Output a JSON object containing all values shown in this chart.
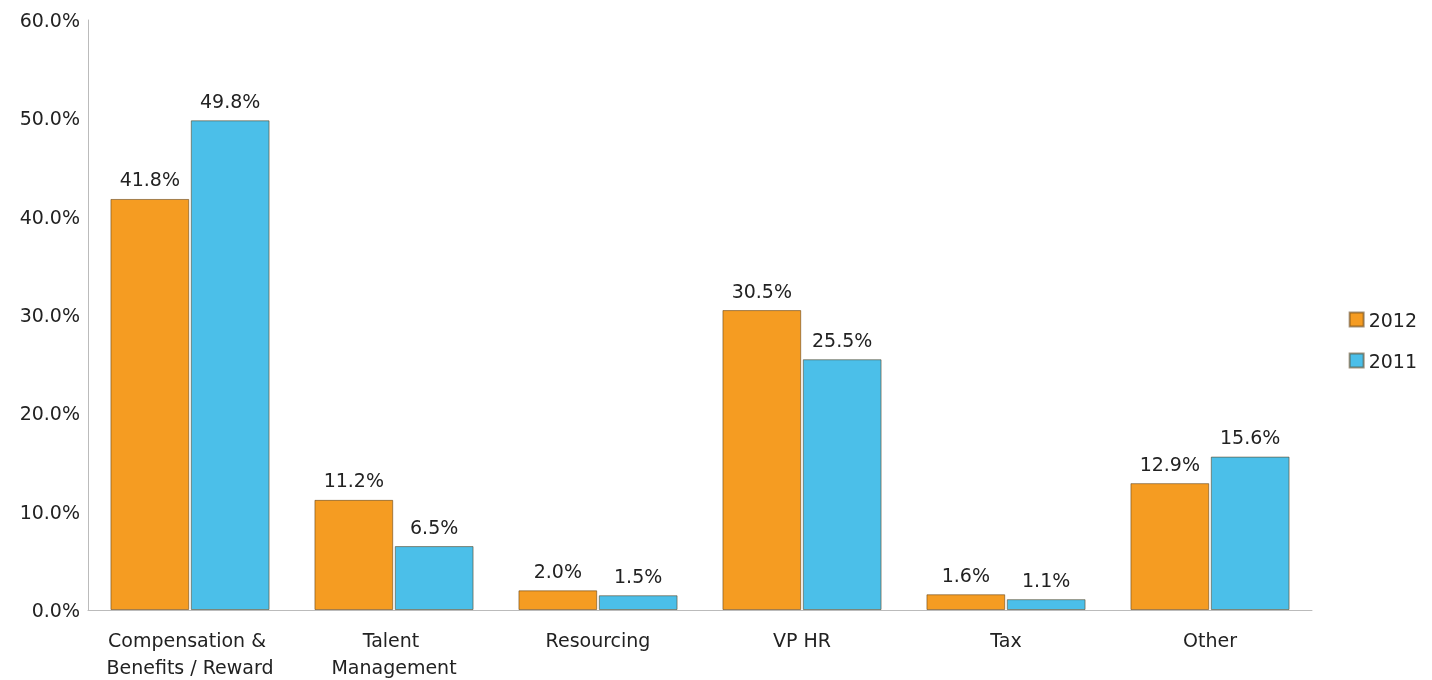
{
  "chart_data": {
    "type": "bar",
    "categories": [
      "Compensation & Benefits / Reward",
      "Talent Management",
      "Resourcing",
      "VP HR",
      "Tax",
      "Other"
    ],
    "series": [
      {
        "name": "2012",
        "color": "#f59c22",
        "values": [
          41.8,
          11.2,
          2.0,
          30.5,
          1.6,
          12.9
        ],
        "value_labels": [
          "41.8%",
          "11.2%",
          "2.0%",
          "30.5%",
          "1.6%",
          "12.9%"
        ]
      },
      {
        "name": "2011",
        "color": "#4bbfe9",
        "values": [
          49.8,
          6.5,
          1.5,
          25.5,
          1.1,
          15.6
        ],
        "value_labels": [
          "49.8%",
          "6.5%",
          "1.5%",
          "25.5%",
          "1.1%",
          "15.6%"
        ]
      }
    ],
    "ylim": [
      0,
      60
    ],
    "yticks": [
      {
        "value": 0,
        "label": "0.0%"
      },
      {
        "value": 10,
        "label": "10.0%"
      },
      {
        "value": 20,
        "label": "20.0%"
      },
      {
        "value": 30,
        "label": "30.0%"
      },
      {
        "value": 40,
        "label": "40.0%"
      },
      {
        "value": 50,
        "label": "50.0%"
      },
      {
        "value": 60,
        "label": "60.0%"
      }
    ],
    "grid": false,
    "legend": "right"
  }
}
